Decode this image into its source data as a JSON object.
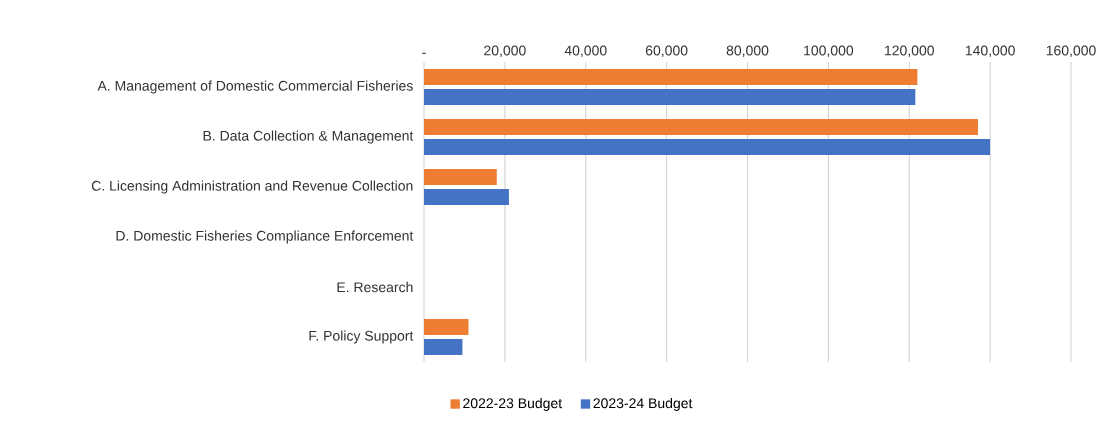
{
  "chart_data": {
    "type": "bar",
    "orientation": "horizontal",
    "categories": [
      "A. Management of Domestic Commercial Fisheries",
      "B. Data Collection & Management",
      "C. Licensing Administration and Revenue Collection",
      "D. Domestic Fisheries Compliance Enforcement",
      "E. Research",
      "F. Policy Support"
    ],
    "series": [
      {
        "name": "2022-23 Budget",
        "color": "#ed7d31",
        "values": [
          122000,
          137000,
          18000,
          null,
          null,
          11000
        ]
      },
      {
        "name": "2023-24 Budget",
        "color": "#4472c4",
        "values": [
          121500,
          140000,
          21000,
          null,
          null,
          9500
        ]
      }
    ],
    "xlim": [
      0,
      160000
    ],
    "xticks": [
      {
        "value": 0,
        "label": "-"
      },
      {
        "value": 20000,
        "label": "20,000"
      },
      {
        "value": 40000,
        "label": "40,000"
      },
      {
        "value": 60000,
        "label": "60,000"
      },
      {
        "value": 80000,
        "label": "80,000"
      },
      {
        "value": 100000,
        "label": "100,000"
      },
      {
        "value": 120000,
        "label": "120,000"
      },
      {
        "value": 140000,
        "label": "140,000"
      },
      {
        "value": 160000,
        "label": "160,000"
      }
    ],
    "grid": "x",
    "legend": "bottom"
  }
}
